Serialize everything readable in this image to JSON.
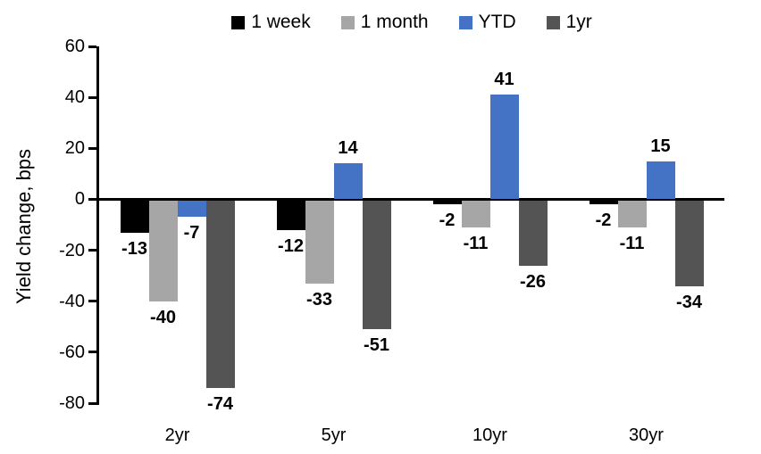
{
  "chart_data": {
    "type": "bar",
    "title": "",
    "xlabel": "",
    "ylabel": "Yield change, bps",
    "categories": [
      "2yr",
      "5yr",
      "10yr",
      "30yr"
    ],
    "series": [
      {
        "name": "1 week",
        "color": "#000000",
        "values": [
          -13,
          -12,
          -2,
          -2
        ]
      },
      {
        "name": "1 month",
        "color": "#A6A6A6",
        "values": [
          -40,
          -33,
          -11,
          -11
        ]
      },
      {
        "name": "YTD",
        "color": "#4472C4",
        "values": [
          -7,
          14,
          41,
          15
        ]
      },
      {
        "name": "1yr",
        "color": "#545454",
        "values": [
          -74,
          -51,
          -26,
          -34
        ]
      }
    ],
    "ylim": [
      -80,
      60
    ],
    "yticks": [
      60,
      40,
      20,
      0,
      -20,
      -40,
      -60,
      -80
    ],
    "data_labels": true,
    "grid": false,
    "legend_position": "top"
  }
}
